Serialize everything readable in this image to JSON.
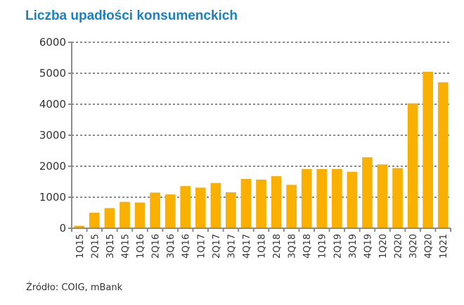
{
  "chart_data": {
    "type": "bar",
    "title": "Liczba upadłości konsumenckich",
    "categories": [
      "1Q15",
      "2Q15",
      "3Q15",
      "4Q15",
      "1Q16",
      "2Q16",
      "3Q16",
      "4Q16",
      "1Q17",
      "2Q17",
      "3Q17",
      "4Q17",
      "1Q18",
      "2Q18",
      "3Q18",
      "4Q18",
      "1Q19",
      "2Q19",
      "3Q19",
      "4Q19",
      "1Q20",
      "2Q20",
      "3Q20",
      "4Q20",
      "1Q21"
    ],
    "values": [
      80,
      500,
      650,
      850,
      830,
      1150,
      1090,
      1360,
      1310,
      1460,
      1160,
      1590,
      1570,
      1680,
      1400,
      1910,
      1910,
      1910,
      1820,
      2290,
      2060,
      1940,
      4030,
      5050,
      4710
    ],
    "ylim": [
      0,
      6000
    ],
    "yticks": [
      0,
      1000,
      2000,
      3000,
      4000,
      5000,
      6000
    ],
    "grid": true,
    "bar_color": "#f9b000",
    "grid_color": "#8c8c8c",
    "xlabel": "",
    "ylabel": ""
  },
  "source": "Źródło: COIG, mBank"
}
